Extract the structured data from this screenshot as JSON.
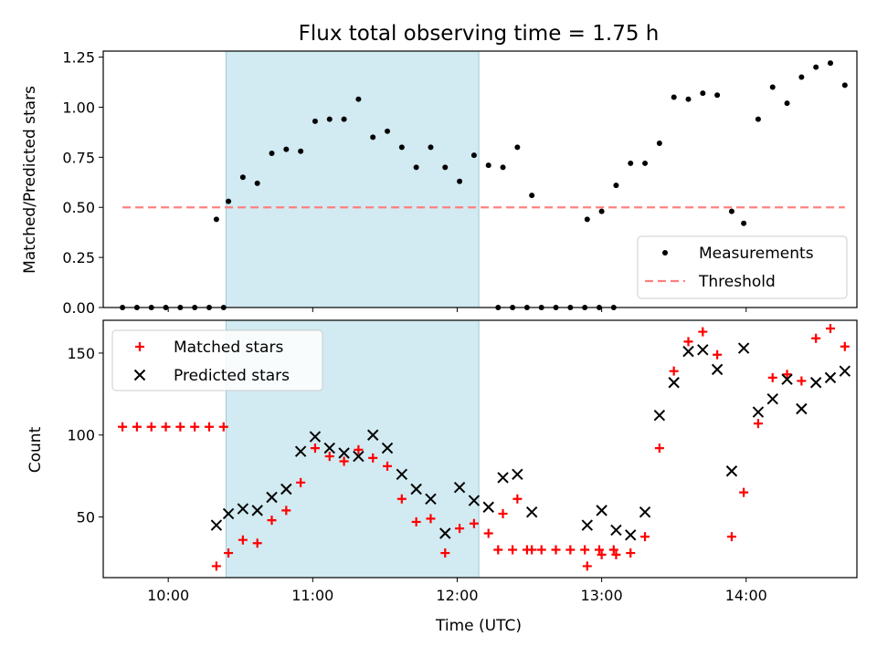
{
  "chart_data": [
    {
      "type": "scatter",
      "title": "Flux total observing time = 1.75 h",
      "xlabel": "",
      "ylabel": "Matched/Predicted stars",
      "xlim": [
        "09:33",
        "14:46"
      ],
      "ylim": [
        0,
        1.28
      ],
      "yticks": [
        "0.00",
        "0.25",
        "0.50",
        "0.75",
        "1.00",
        "1.25"
      ],
      "highlight_span": [
        "10:24",
        "12:09"
      ],
      "highlight_color": "#add8e6",
      "threshold": 0.5,
      "legend_position": "lower right",
      "series": [
        {
          "name": "Measurements",
          "marker": "dot",
          "color": "#000000",
          "points": [
            [
              "09:41",
              0
            ],
            [
              "09:47",
              0
            ],
            [
              "09:53",
              0
            ],
            [
              "09:59",
              0
            ],
            [
              "10:05",
              0
            ],
            [
              "10:11",
              0
            ],
            [
              "10:17",
              0
            ],
            [
              "10:23",
              0
            ],
            [
              "10:20",
              0.44
            ],
            [
              "10:25",
              0.53
            ],
            [
              "10:31",
              0.65
            ],
            [
              "10:37",
              0.62
            ],
            [
              "10:43",
              0.77
            ],
            [
              "10:49",
              0.79
            ],
            [
              "10:55",
              0.78
            ],
            [
              "11:01",
              0.93
            ],
            [
              "11:07",
              0.94
            ],
            [
              "11:13",
              0.94
            ],
            [
              "11:19",
              1.04
            ],
            [
              "11:25",
              0.85
            ],
            [
              "11:31",
              0.88
            ],
            [
              "11:37",
              0.8
            ],
            [
              "11:43",
              0.7
            ],
            [
              "11:49",
              0.8
            ],
            [
              "11:55",
              0.7
            ],
            [
              "12:01",
              0.63
            ],
            [
              "12:07",
              0.76
            ],
            [
              "12:13",
              0.71
            ],
            [
              "12:19",
              0.7
            ],
            [
              "12:25",
              0.8
            ],
            [
              "12:31",
              0.56
            ],
            [
              "12:17",
              0
            ],
            [
              "12:23",
              0
            ],
            [
              "12:29",
              0
            ],
            [
              "12:35",
              0
            ],
            [
              "12:41",
              0
            ],
            [
              "12:47",
              0
            ],
            [
              "12:53",
              0
            ],
            [
              "12:59",
              0
            ],
            [
              "13:05",
              0
            ],
            [
              "12:54",
              0.44
            ],
            [
              "13:00",
              0.48
            ],
            [
              "13:06",
              0.61
            ],
            [
              "13:12",
              0.72
            ],
            [
              "13:18",
              0.72
            ],
            [
              "13:24",
              0.82
            ],
            [
              "13:30",
              1.05
            ],
            [
              "13:36",
              1.04
            ],
            [
              "13:42",
              1.07
            ],
            [
              "13:48",
              1.06
            ],
            [
              "13:54",
              0.48
            ],
            [
              "13:59",
              0.42
            ],
            [
              "14:05",
              0.94
            ],
            [
              "14:11",
              1.1
            ],
            [
              "14:17",
              1.02
            ],
            [
              "14:23",
              1.15
            ],
            [
              "14:29",
              1.2
            ],
            [
              "14:35",
              1.22
            ],
            [
              "14:41",
              1.11
            ]
          ]
        },
        {
          "name": "Threshold",
          "marker": "dashed-line",
          "color": "#ff8080",
          "points": [
            [
              "09:41",
              0.5
            ],
            [
              "14:41",
              0.5
            ]
          ]
        }
      ]
    },
    {
      "type": "scatter",
      "title": "",
      "xlabel": "Time (UTC)",
      "ylabel": "Count",
      "xlim": [
        "09:33",
        "14:46"
      ],
      "ylim": [
        13,
        170
      ],
      "yticks": [
        "50",
        "100",
        "150"
      ],
      "xticks": [
        "10:00",
        "11:00",
        "12:00",
        "13:00",
        "14:00"
      ],
      "highlight_span": [
        "10:24",
        "12:09"
      ],
      "legend_position": "upper left",
      "series": [
        {
          "name": "Matched stars",
          "marker": "plus",
          "color": "#ff0000",
          "points": [
            [
              "09:41",
              105
            ],
            [
              "09:47",
              105
            ],
            [
              "09:53",
              105
            ],
            [
              "09:59",
              105
            ],
            [
              "10:05",
              105
            ],
            [
              "10:11",
              105
            ],
            [
              "10:17",
              105
            ],
            [
              "10:23",
              105
            ],
            [
              "10:20",
              20
            ],
            [
              "10:25",
              28
            ],
            [
              "10:31",
              36
            ],
            [
              "10:37",
              34
            ],
            [
              "10:43",
              48
            ],
            [
              "10:49",
              54
            ],
            [
              "10:55",
              71
            ],
            [
              "11:01",
              92
            ],
            [
              "11:07",
              87
            ],
            [
              "11:13",
              84
            ],
            [
              "11:19",
              91
            ],
            [
              "11:25",
              86
            ],
            [
              "11:31",
              81
            ],
            [
              "11:37",
              61
            ],
            [
              "11:43",
              47
            ],
            [
              "11:49",
              49
            ],
            [
              "11:55",
              28
            ],
            [
              "12:01",
              43
            ],
            [
              "12:07",
              46
            ],
            [
              "12:13",
              40
            ],
            [
              "12:19",
              52
            ],
            [
              "12:25",
              61
            ],
            [
              "12:31",
              30
            ],
            [
              "12:17",
              30
            ],
            [
              "12:23",
              30
            ],
            [
              "12:29",
              30
            ],
            [
              "12:35",
              30
            ],
            [
              "12:41",
              30
            ],
            [
              "12:47",
              30
            ],
            [
              "12:53",
              30
            ],
            [
              "12:59",
              30
            ],
            [
              "13:05",
              30
            ],
            [
              "12:54",
              20
            ],
            [
              "13:00",
              27
            ],
            [
              "13:06",
              27
            ],
            [
              "13:12",
              28
            ],
            [
              "13:18",
              38
            ],
            [
              "13:24",
              92
            ],
            [
              "13:30",
              139
            ],
            [
              "13:36",
              157
            ],
            [
              "13:42",
              163
            ],
            [
              "13:48",
              149
            ],
            [
              "13:54",
              38
            ],
            [
              "13:59",
              65
            ],
            [
              "14:05",
              107
            ],
            [
              "14:11",
              135
            ],
            [
              "14:17",
              137
            ],
            [
              "14:23",
              133
            ],
            [
              "14:29",
              159
            ],
            [
              "14:35",
              165
            ],
            [
              "14:41",
              154
            ]
          ]
        },
        {
          "name": "Predicted stars",
          "marker": "x",
          "color": "#000000",
          "points": [
            [
              "10:20",
              45
            ],
            [
              "10:25",
              52
            ],
            [
              "10:31",
              55
            ],
            [
              "10:37",
              54
            ],
            [
              "10:43",
              62
            ],
            [
              "10:49",
              67
            ],
            [
              "10:55",
              90
            ],
            [
              "11:01",
              99
            ],
            [
              "11:07",
              92
            ],
            [
              "11:13",
              89
            ],
            [
              "11:19",
              87
            ],
            [
              "11:25",
              100
            ],
            [
              "11:31",
              92
            ],
            [
              "11:37",
              76
            ],
            [
              "11:43",
              67
            ],
            [
              "11:49",
              61
            ],
            [
              "11:55",
              40
            ],
            [
              "12:01",
              68
            ],
            [
              "12:07",
              60
            ],
            [
              "12:13",
              56
            ],
            [
              "12:19",
              74
            ],
            [
              "12:25",
              76
            ],
            [
              "12:31",
              53
            ],
            [
              "12:54",
              45
            ],
            [
              "13:00",
              54
            ],
            [
              "13:06",
              42
            ],
            [
              "13:12",
              39
            ],
            [
              "13:18",
              53
            ],
            [
              "13:24",
              112
            ],
            [
              "13:30",
              132
            ],
            [
              "13:36",
              151
            ],
            [
              "13:42",
              152
            ],
            [
              "13:48",
              140
            ],
            [
              "13:54",
              78
            ],
            [
              "13:59",
              153
            ],
            [
              "14:05",
              114
            ],
            [
              "14:11",
              122
            ],
            [
              "14:17",
              134
            ],
            [
              "14:23",
              116
            ],
            [
              "14:29",
              132
            ],
            [
              "14:35",
              135
            ],
            [
              "14:41",
              139
            ]
          ]
        }
      ]
    }
  ]
}
